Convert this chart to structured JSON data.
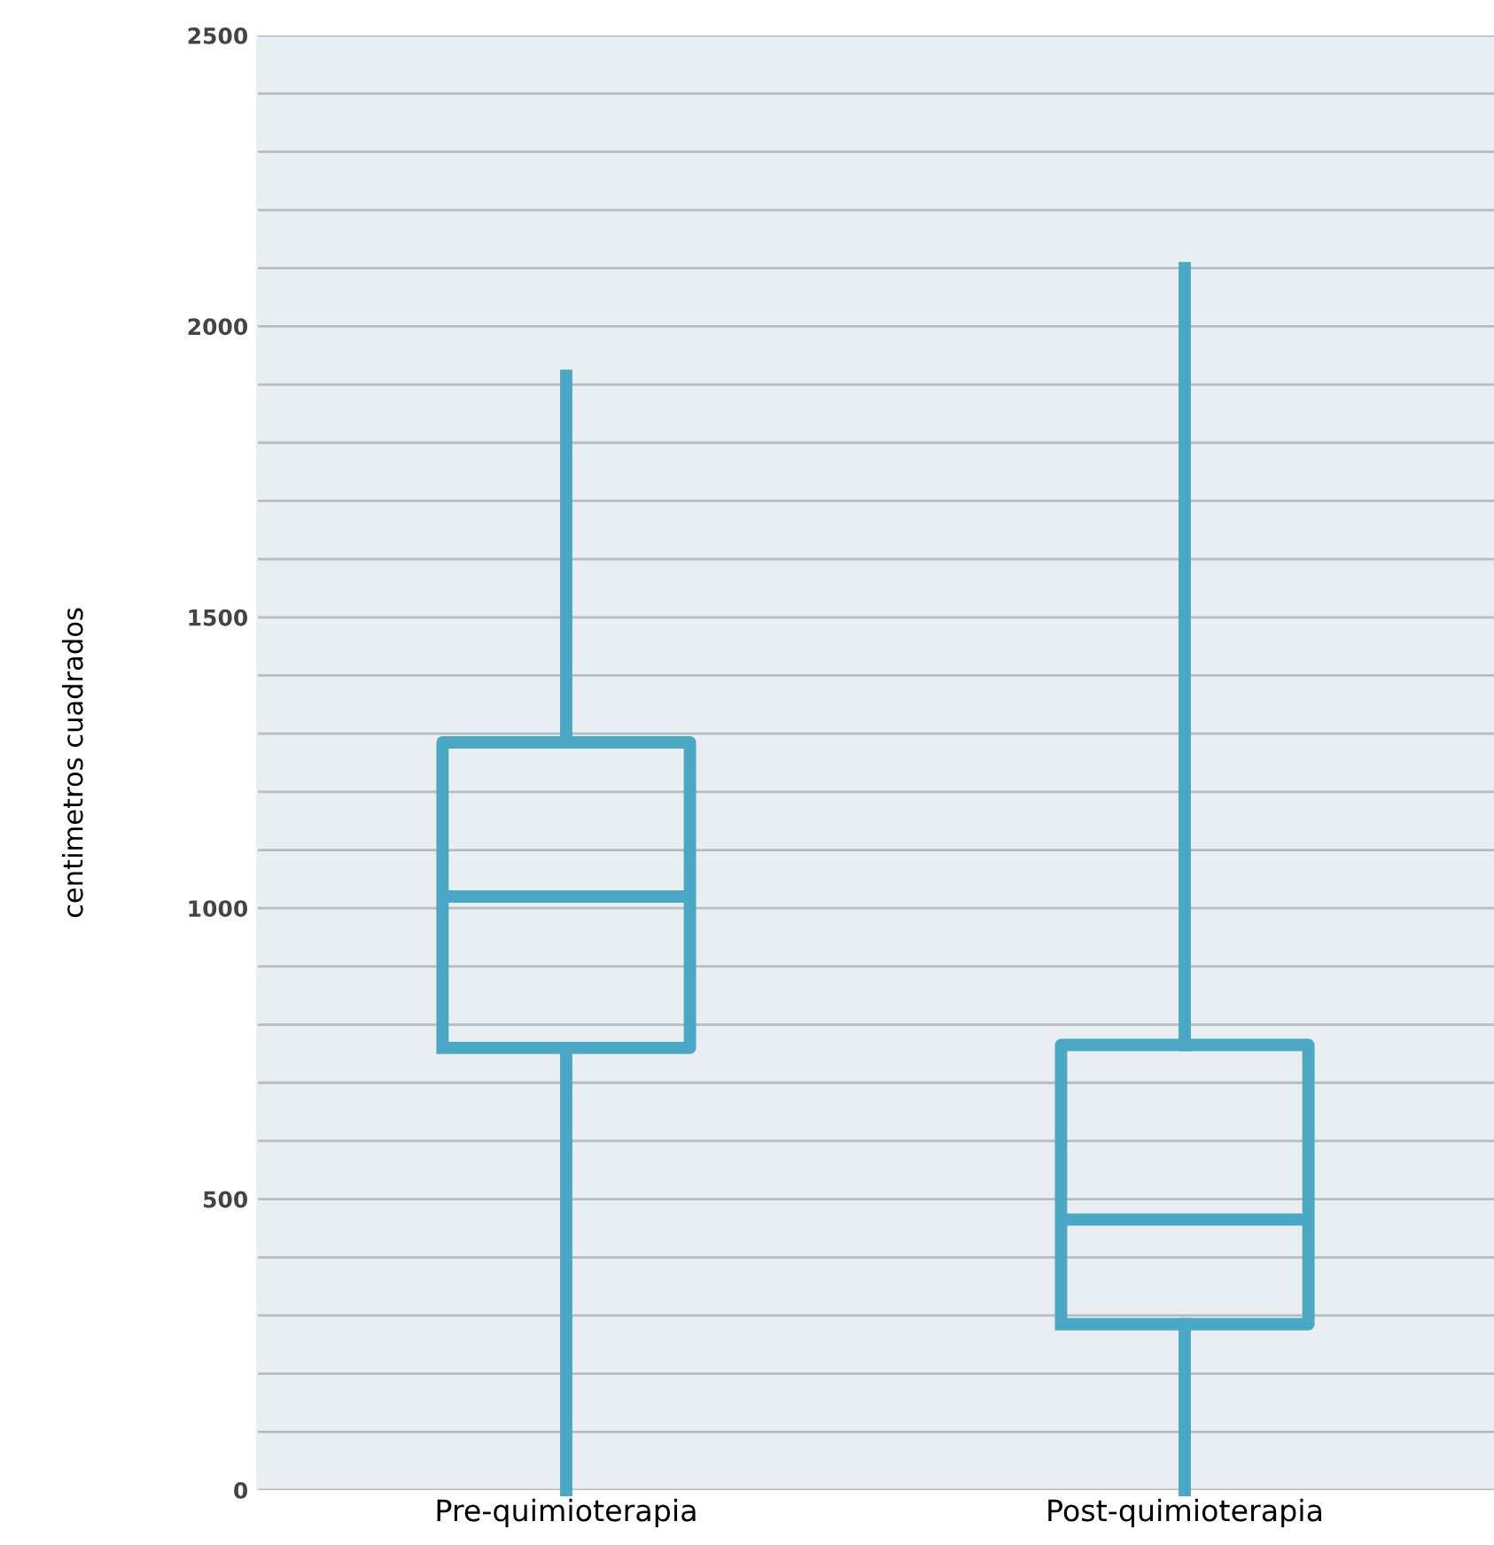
{
  "chart_data": {
    "type": "box",
    "ylabel": "centimetros cuadrados",
    "categories": [
      "Pre-quimioterapia",
      "Post-quimioterapia"
    ],
    "boxes": [
      {
        "low": 0,
        "q1": 760,
        "median": 1020,
        "q3": 1285,
        "high": 1915
      },
      {
        "low": 0,
        "q1": 285,
        "median": 465,
        "q3": 765,
        "high": 2100
      }
    ],
    "color": "#4aa8c4",
    "ylim": [
      0,
      2500
    ],
    "yticks": [
      0,
      {
        "value": 100,
        "label": null
      },
      {
        "value": 200,
        "label": null
      },
      {
        "value": 300,
        "label": null
      },
      {
        "value": 400,
        "label": null
      },
      500,
      {
        "value": 600,
        "label": null
      },
      {
        "value": 700,
        "label": null
      },
      {
        "value": 800,
        "label": null
      },
      {
        "value": 900,
        "label": null
      },
      1000,
      {
        "value": 1100,
        "label": null
      },
      {
        "value": 1200,
        "label": null
      },
      {
        "value": 1300,
        "label": null
      },
      {
        "value": 1400,
        "label": null
      },
      1500,
      {
        "value": 1600,
        "label": null
      },
      {
        "value": 1700,
        "label": null
      },
      {
        "value": 1800,
        "label": null
      },
      {
        "value": 1900,
        "label": null
      },
      2000,
      {
        "value": 2100,
        "label": null
      },
      {
        "value": 2200,
        "label": null
      },
      {
        "value": 2300,
        "label": null
      },
      {
        "value": 2400,
        "label": null
      },
      2500
    ],
    "grid": "y"
  }
}
